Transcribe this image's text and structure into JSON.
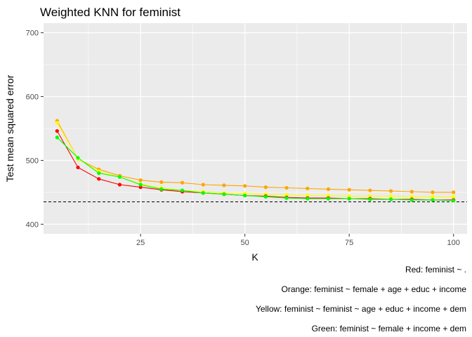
{
  "chart_data": {
    "type": "line",
    "title": "Weighted KNN for feminist",
    "xlabel": "K",
    "ylabel": "Test mean squared error",
    "xlim": [
      1.75,
      103.25
    ],
    "ylim": [
      385,
      715
    ],
    "xticks": [
      25,
      50,
      75,
      100
    ],
    "yticks": [
      400,
      500,
      600,
      700
    ],
    "grid": true,
    "legend": "none",
    "x": [
      5,
      10,
      15,
      20,
      25,
      30,
      35,
      40,
      45,
      50,
      55,
      60,
      65,
      70,
      75,
      80,
      85,
      90,
      95,
      100
    ],
    "series": [
      {
        "color": "#FFA500",
        "values": [
          562,
          502,
          486,
          476,
          469,
          466,
          465,
          462,
          461,
          460,
          458,
          457,
          456,
          455,
          454,
          453,
          452,
          451,
          450,
          450
        ]
      },
      {
        "color": "#FFFF00",
        "values": [
          559,
          502,
          483,
          474,
          463,
          457,
          453,
          451,
          449,
          448,
          447,
          446,
          445,
          445,
          444,
          444,
          444,
          443,
          443,
          443
        ]
      },
      {
        "color": "#FF0000",
        "values": [
          546,
          489,
          471,
          462,
          458,
          454,
          451,
          449,
          447,
          445,
          444,
          442,
          441,
          441,
          440,
          440,
          439,
          439,
          438,
          438
        ]
      },
      {
        "color": "#00FF00",
        "values": [
          536,
          504,
          480,
          474,
          462,
          455,
          453,
          449,
          447,
          445,
          443,
          441,
          440,
          440,
          440,
          439,
          439,
          438,
          438,
          437
        ]
      }
    ],
    "reference_line": {
      "y": 435,
      "style": "dashed",
      "color": "#000000"
    },
    "captions": [
      "Red: feminist ~ .",
      "Orange: feminist ~ female + age + educ + income",
      "Yellow: feminist ~ feminist ~ age + educ + income + dem",
      "Green: feminist ~ female + income + dem"
    ]
  }
}
